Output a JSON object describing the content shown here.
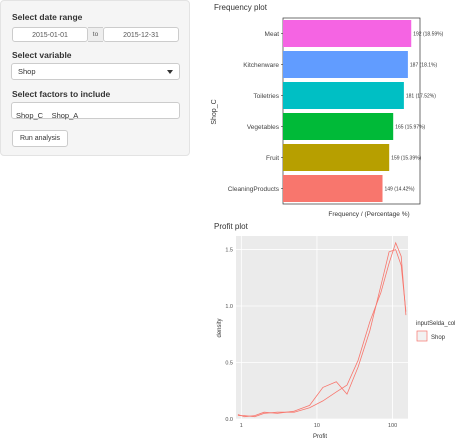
{
  "sidebar": {
    "date_label": "Select date range",
    "date_start": "2015-01-01",
    "date_sep": "to",
    "date_end": "2015-12-31",
    "variable_label": "Select variable",
    "variable_value": "Shop",
    "factors_label": "Select factors to include",
    "factor_items": [
      "Shop_C",
      "Shop_A"
    ],
    "run_button": "Run analysis"
  },
  "freq_plot": {
    "title": "Frequency plot",
    "ylabel": "Shop_C",
    "xlabel": "Frequency / (Percentage %)"
  },
  "profit_plot": {
    "title": "Profit plot",
    "ylabel": "density",
    "xlabel": "Profit",
    "legend_title": "inputSelda_col",
    "legend_item": "Shop"
  },
  "chart_data": [
    {
      "type": "bar",
      "orientation": "horizontal",
      "categories": [
        "Meat",
        "Kitchenware",
        "Toiletries",
        "Vegetables",
        "Fruit",
        "CleaningProducts"
      ],
      "values": [
        192,
        187,
        181,
        165,
        159,
        149
      ],
      "labels": [
        "192 (18.59%)",
        "187 (18.1%)",
        "181 (17.52%)",
        "165 (15.97%)",
        "159 (15.39%)",
        "149 (14.42%)"
      ],
      "colors": [
        "#F564E3",
        "#619CFF",
        "#00BFC4",
        "#00BA38",
        "#B79F00",
        "#F8766D"
      ],
      "ylabel": "Shop_C",
      "xlabel": "Frequency / (Percentage %)",
      "grid": false
    },
    {
      "type": "line",
      "x_scale": "log",
      "xticks": [
        "1",
        "10",
        "100"
      ],
      "yticks": [
        "0.0",
        "0.5",
        "1.0",
        "1.5"
      ],
      "xlim": [
        0.85,
        160
      ],
      "ylim": [
        0,
        1.62
      ],
      "xlabel": "Profit",
      "ylabel": "density",
      "legend_title": "inputSelda_col",
      "color": "#F8766D",
      "series": [
        {
          "name": "Shop",
          "x": [
            0.9,
            1.1,
            1.5,
            2,
            3,
            5,
            8,
            12,
            18,
            25,
            35,
            50,
            70,
            90,
            110,
            130,
            150
          ],
          "y": [
            0.04,
            0.02,
            0.03,
            0.06,
            0.05,
            0.07,
            0.12,
            0.28,
            0.33,
            0.22,
            0.46,
            0.78,
            1.18,
            1.48,
            1.5,
            1.36,
            0.95
          ]
        },
        {
          "name": "Shop",
          "x": [
            0.9,
            1.1,
            1.5,
            2,
            3,
            5,
            8,
            12,
            18,
            25,
            35,
            50,
            70,
            90,
            110,
            130,
            150
          ],
          "y": [
            0.03,
            0.03,
            0.02,
            0.05,
            0.06,
            0.06,
            0.1,
            0.16,
            0.24,
            0.3,
            0.52,
            0.86,
            1.12,
            1.38,
            1.56,
            1.44,
            0.92
          ]
        }
      ]
    }
  ]
}
